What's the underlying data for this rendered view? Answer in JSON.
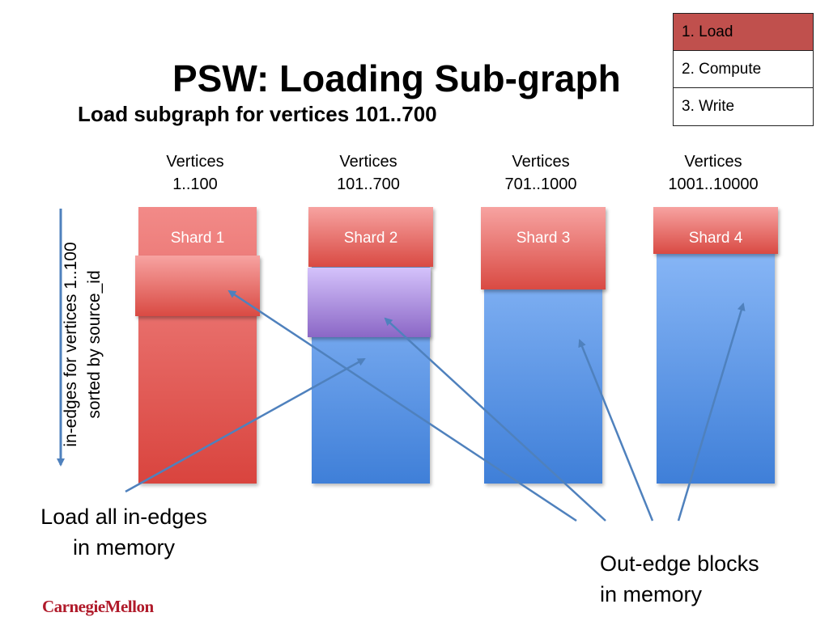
{
  "title": "PSW: Loading Sub-graph",
  "subtitle": "Load subgraph for vertices 101..700",
  "steps": [
    "1. Load",
    "2. Compute",
    "3. Write"
  ],
  "active_step": 0,
  "columns": [
    {
      "label_line1": "Vertices",
      "label_line2": "1..100",
      "shard": "Shard 1"
    },
    {
      "label_line1": "Vertices",
      "label_line2": "101..700",
      "shard": "Shard 2"
    },
    {
      "label_line1": "Vertices",
      "label_line2": "701..1000",
      "shard": "Shard 3"
    },
    {
      "label_line1": "Vertices",
      "label_line2": "1001..10000",
      "shard": "Shard 4"
    }
  ],
  "side_label": {
    "line1": "in-edges for vertices 1..100",
    "line2": "sorted by source_id"
  },
  "notes": {
    "left_line1": "Load all in-edges",
    "left_line2": "in memory",
    "right_line1": "Out-edge blocks",
    "right_line2": "in memory"
  },
  "logo": "CarnegieMellon",
  "colors": {
    "active_step": "#c0504d",
    "red_shard": "#d9443e",
    "blue_shard": "#3f7fd8",
    "purple_block": "#8b67c6",
    "arrow": "#4f81bd",
    "logo": "#b01a2a"
  }
}
